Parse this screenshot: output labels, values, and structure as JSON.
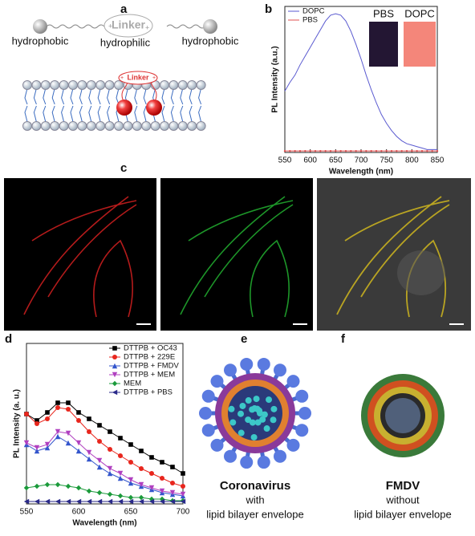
{
  "panel_labels": [
    "a",
    "b",
    "c",
    "d",
    "e",
    "f"
  ],
  "panel_a": {
    "linker": "Linker",
    "charge": "+",
    "left": "hydrophobic",
    "middle": "hydrophilic",
    "right": "hydrophobic",
    "membrane_linker": "Linker"
  },
  "chart_data": [
    {
      "type": "line",
      "x_label": "Wavelength (nm)",
      "y_label": "PL Intensity (a.u.)",
      "x": [
        550,
        560,
        570,
        580,
        590,
        600,
        610,
        620,
        630,
        640,
        650,
        660,
        670,
        680,
        690,
        700,
        710,
        720,
        730,
        740,
        750,
        760,
        770,
        780,
        790,
        800,
        810,
        820,
        830,
        840,
        850
      ],
      "series": [
        {
          "name": "DOPC",
          "color": "#5a5ad0",
          "marker": "none",
          "values": [
            0.42,
            0.48,
            0.53,
            0.6,
            0.66,
            0.72,
            0.78,
            0.84,
            0.9,
            0.94,
            0.95,
            0.94,
            0.9,
            0.83,
            0.74,
            0.64,
            0.53,
            0.43,
            0.34,
            0.26,
            0.2,
            0.15,
            0.11,
            0.08,
            0.06,
            0.05,
            0.04,
            0.03,
            0.02,
            0.02,
            0.02
          ]
        },
        {
          "name": "PBS",
          "color": "#e05050",
          "marker": "dot",
          "values": [
            0.01,
            0.01,
            0.01,
            0.01,
            0.01,
            0.01,
            0.01,
            0.01,
            0.01,
            0.01,
            0.01,
            0.01,
            0.01,
            0.01,
            0.01,
            0.01,
            0.01,
            0.01,
            0.01,
            0.01,
            0.01,
            0.01,
            0.01,
            0.01,
            0.01,
            0.01,
            0.01,
            0.01,
            0.01,
            0.01,
            0.01
          ]
        }
      ],
      "xlim": [
        550,
        850
      ],
      "xticks": [
        550,
        600,
        650,
        700,
        750,
        800,
        850
      ],
      "ylim": [
        0,
        1
      ],
      "legend": "upper left",
      "photo_labels": [
        "PBS",
        "DOPC"
      ]
    },
    {
      "type": "line",
      "x_label": "Wavelength (nm)",
      "y_label": "PL Intensity (a. u.)",
      "x": [
        550,
        560,
        570,
        580,
        590,
        600,
        610,
        620,
        630,
        640,
        650,
        660,
        670,
        680,
        690,
        700
      ],
      "series": [
        {
          "name": "DTTPB + OC43",
          "color": "#000000",
          "marker": "square",
          "values": [
            56,
            52,
            57,
            63,
            63,
            57,
            53,
            49,
            45,
            41,
            37,
            33,
            29,
            26,
            23,
            19
          ]
        },
        {
          "name": "DTTPB + 229E",
          "color": "#e8261d",
          "marker": "circle",
          "values": [
            56,
            50,
            53,
            60,
            59,
            52,
            45,
            39,
            34,
            30,
            26,
            22,
            19,
            16,
            13,
            11
          ]
        },
        {
          "name": "DTTPB + FMDV",
          "color": "#3355cc",
          "marker": "triangle-up",
          "values": [
            37,
            33,
            35,
            42,
            38,
            33,
            28,
            23,
            19,
            16,
            13,
            11,
            9,
            7,
            6,
            5
          ]
        },
        {
          "name": "DTTPB + MEM",
          "color": "#b040c0",
          "marker": "triangle-down",
          "values": [
            38,
            35,
            37,
            45,
            44,
            38,
            32,
            27,
            22,
            19,
            15,
            12,
            10,
            8,
            7,
            6
          ]
        },
        {
          "name": "MEM",
          "color": "#1a9a3a",
          "marker": "diamond",
          "values": [
            10,
            11,
            12,
            12,
            11,
            10,
            8,
            7,
            6,
            5,
            4,
            4,
            3,
            3,
            2,
            2
          ]
        },
        {
          "name": "DTTPB + PBS",
          "color": "#2a2a8a",
          "marker": "triangle-left",
          "values": [
            1.5,
            1.5,
            1.5,
            1.5,
            1.5,
            1.5,
            1.5,
            1.5,
            1.5,
            1.5,
            1.5,
            1.5,
            1.5,
            1.5,
            1.5,
            1.5
          ]
        }
      ],
      "xlim": [
        550,
        700
      ],
      "xticks": [
        550,
        600,
        650,
        700
      ],
      "ylim": [
        0,
        100
      ],
      "legend": "upper right"
    }
  ],
  "panel_e": {
    "name": "Coronavirus",
    "line1": "with",
    "line2": "lipid bilayer envelope"
  },
  "panel_f": {
    "name": "FMDV",
    "line1": "without",
    "line2": "lipid bilayer envelope"
  }
}
